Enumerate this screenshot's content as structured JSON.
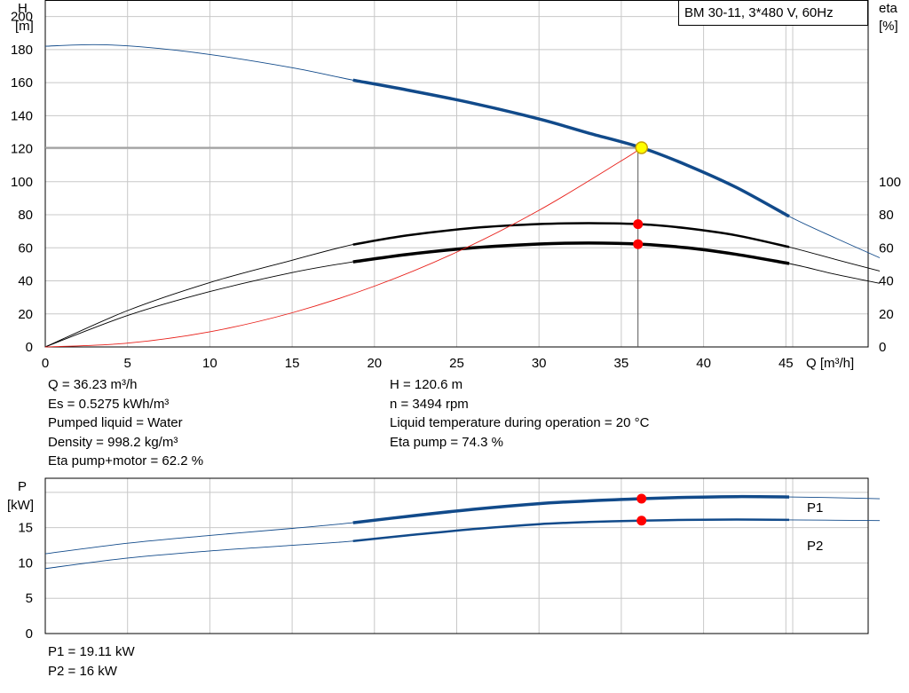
{
  "colors": {
    "head_curve": "#114a8a",
    "efficiency_curves": "#000000",
    "system_curve": "#e8201a",
    "duty_point": "#ff0000",
    "duty_point_marker": "#ffff00",
    "grid": "#c8c8c8"
  },
  "chart_data": [
    {
      "type": "line",
      "title": "BM 30-11, 3*480 V, 60Hz",
      "xlabel": "Q [m³/h]",
      "ylabel_left": [
        "H",
        "[m]"
      ],
      "ylabel_right": [
        "eta",
        "[%]"
      ],
      "xlim": [
        0,
        50
      ],
      "ylim": [
        0,
        210
      ],
      "x_ticks": [
        0,
        5,
        10,
        15,
        20,
        25,
        30,
        35,
        40,
        45
      ],
      "y_ticks_left": [
        0,
        20,
        40,
        60,
        80,
        100,
        120,
        140,
        160,
        180,
        200
      ],
      "y_ticks_right": [
        0,
        20,
        40,
        60,
        80,
        100
      ],
      "grid": true,
      "series": [
        {
          "name": "",
          "role": "head",
          "x": [
            0,
            3,
            6,
            10,
            15,
            18.7,
            22,
            26,
            30,
            33,
            36.23,
            39,
            42,
            45.2,
            48,
            50.7
          ],
          "y": [
            182,
            183,
            181.5,
            177,
            169,
            161.5,
            155.5,
            147.5,
            138,
            129.5,
            120.6,
            110,
            96.5,
            79,
            66,
            54
          ],
          "bold_range": [
            18.7,
            45.2
          ]
        },
        {
          "name": "",
          "role": "efficiency_pump",
          "x": [
            0,
            5,
            10,
            15,
            18.7,
            22,
            26,
            30,
            33,
            36.23,
            39,
            42,
            45.2,
            48,
            50.7
          ],
          "y": [
            0,
            22,
            39,
            52.5,
            62,
            67.5,
            72,
            74.4,
            74.9,
            74.3,
            71.8,
            67.5,
            60.5,
            53,
            46
          ],
          "bold_range": [
            18.7,
            45.2
          ]
        },
        {
          "name": "",
          "role": "efficiency_total",
          "x": [
            0,
            5,
            10,
            15,
            18.7,
            22,
            26,
            30,
            33,
            36.23,
            39,
            42,
            45.2,
            48,
            50.7
          ],
          "y": [
            0,
            19,
            33.5,
            45,
            51.5,
            56,
            60,
            62.3,
            62.9,
            62.2,
            60,
            56,
            50.5,
            44,
            38.5
          ],
          "bold_range": [
            18.7,
            45.2
          ]
        },
        {
          "name": "",
          "role": "system",
          "x": [
            0,
            5,
            10,
            15,
            20,
            25,
            30,
            35,
            36.23
          ],
          "y": [
            0,
            2.3,
            9.2,
            20.7,
            36.8,
            57.4,
            82.7,
            112.6,
            120.6
          ]
        }
      ],
      "duty_point": {
        "q": 36.23,
        "h": 120.6,
        "eta_pump": 74.3,
        "eta_total": 62.2
      }
    },
    {
      "type": "line",
      "ylabel": [
        "P",
        "[kW]"
      ],
      "xlim": [
        0,
        50
      ],
      "ylim": [
        0,
        22
      ],
      "y_ticks": [
        0,
        5,
        10,
        15
      ],
      "grid": true,
      "series": [
        {
          "name": "P1",
          "x": [
            0,
            5,
            10,
            15,
            18.7,
            22,
            26,
            30,
            33,
            36.23,
            39,
            42,
            45.2,
            48,
            50.7
          ],
          "y": [
            11.3,
            12.8,
            13.9,
            14.9,
            15.7,
            16.6,
            17.6,
            18.4,
            18.8,
            19.11,
            19.3,
            19.4,
            19.35,
            19.25,
            19.1
          ],
          "bold_range": [
            18.7,
            45.2
          ]
        },
        {
          "name": "P2",
          "x": [
            0,
            5,
            10,
            15,
            18.7,
            22,
            26,
            30,
            33,
            36.23,
            39,
            42,
            45.2,
            48,
            50.7
          ],
          "y": [
            9.2,
            10.7,
            11.7,
            12.5,
            13.1,
            13.9,
            14.8,
            15.5,
            15.8,
            16.0,
            16.1,
            16.15,
            16.1,
            16.05,
            16.0
          ],
          "bold_range": [
            18.7,
            45.2
          ]
        }
      ],
      "duty_point": {
        "q": 36.23,
        "p1": 19.11,
        "p2": 16
      }
    }
  ],
  "info_left": [
    "Q = 36.23 m³/h",
    "Es = 0.5275 kWh/m³",
    "Pumped liquid = Water",
    "Density = 998.2 kg/m³",
    "Eta pump+motor = 62.2 %"
  ],
  "info_right": [
    "H = 120.6 m",
    "n = 3494 rpm",
    "Liquid temperature during operation = 20 °C",
    "Eta pump = 74.3 %"
  ],
  "info_power": [
    "P1 = 19.11 kW",
    "P2 = 16 kW"
  ]
}
